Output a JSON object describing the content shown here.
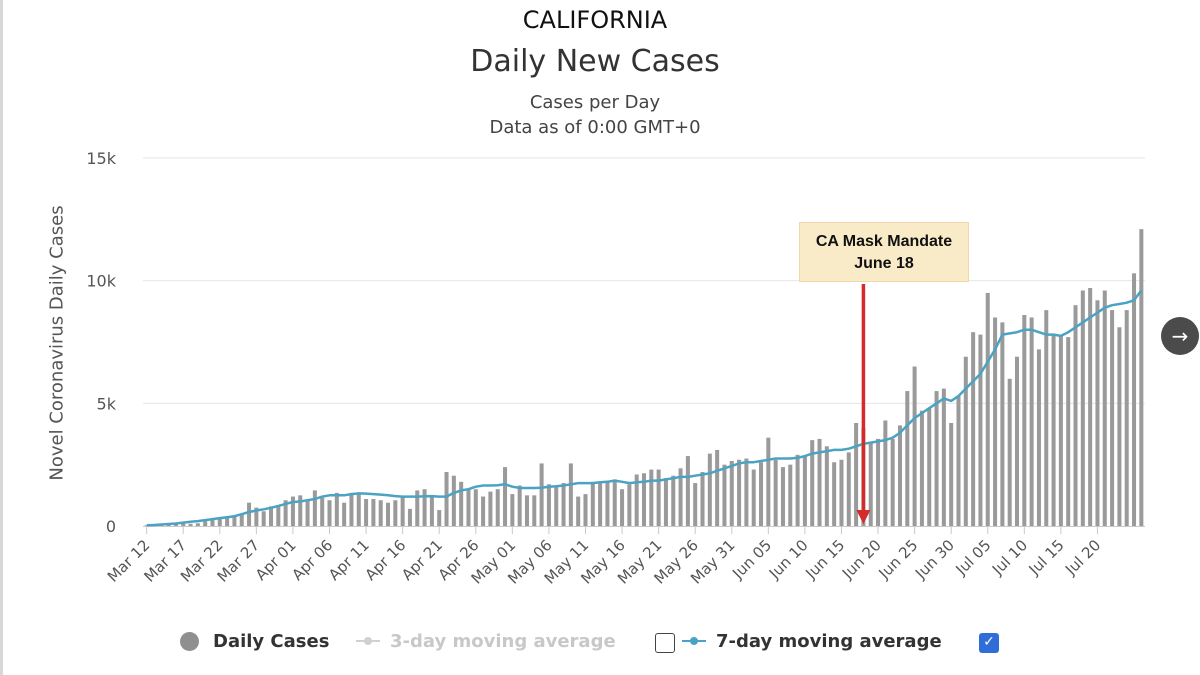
{
  "header": {
    "state": "CALIFORNIA",
    "title": "Daily New Cases",
    "subtitle1": "Cases per Day",
    "subtitle2": "Data as of 0:00 GMT+0"
  },
  "annotation": {
    "line1": "CA Mask Mandate",
    "line2": "June 18",
    "date": "Jun 18",
    "color": "#d62b2b"
  },
  "legend": {
    "daily": "Daily Cases",
    "ma3": "3-day moving average",
    "ma7": "7-day moving average",
    "ma3_checked": false,
    "ma7_checked": true
  },
  "nav": {
    "next_icon": "→"
  },
  "colors": {
    "bars": "#9a9a9a",
    "line": "#4aa3c2",
    "grid": "#e6e6e6",
    "axis_text": "#555555"
  },
  "chart_data": {
    "type": "bar",
    "title": "Daily New Cases",
    "xlabel": "",
    "ylabel": "Novel Coronavirus Daily Cases",
    "ylim": [
      0,
      15000
    ],
    "yticks": [
      0,
      5000,
      10000,
      15000
    ],
    "ytick_labels": [
      "0",
      "5k",
      "10k",
      "15k"
    ],
    "start_date": "Mar 12",
    "xtick_labels": [
      "Mar 12",
      "Mar 17",
      "Mar 22",
      "Mar 27",
      "Apr 01",
      "Apr 06",
      "Apr 11",
      "Apr 16",
      "Apr 21",
      "Apr 26",
      "May 01",
      "May 06",
      "May 11",
      "May 16",
      "May 21",
      "May 26",
      "May 31",
      "Jun 05",
      "Jun 10",
      "Jun 15",
      "Jun 20",
      "Jun 25",
      "Jun 30",
      "Jul 05",
      "Jul 10",
      "Jul 15",
      "Jul 20"
    ],
    "series": [
      {
        "name": "Daily Cases",
        "kind": "bar",
        "values": [
          30,
          40,
          60,
          80,
          100,
          120,
          90,
          110,
          200,
          250,
          350,
          380,
          400,
          450,
          950,
          750,
          600,
          800,
          850,
          1050,
          1200,
          1250,
          1050,
          1450,
          1150,
          1050,
          1350,
          950,
          1350,
          1300,
          1100,
          1100,
          1050,
          950,
          1050,
          1200,
          700,
          1450,
          1500,
          1200,
          650,
          2200,
          2050,
          1800,
          1500,
          1500,
          1200,
          1400,
          1500,
          2400,
          1300,
          1650,
          1250,
          1250,
          2550,
          1700,
          1650,
          1750,
          2550,
          1200,
          1300,
          1800,
          1800,
          1850,
          1900,
          1500,
          1700,
          2100,
          2150,
          2300,
          2300,
          1950,
          2050,
          2350,
          2850,
          1750,
          2200,
          2950,
          3100,
          2500,
          2650,
          2700,
          2750,
          2300,
          2600,
          3600,
          2700,
          2400,
          2500,
          2900,
          2850,
          3500,
          3550,
          3250,
          2600,
          2700,
          3000,
          4200,
          4000,
          3400,
          3550,
          4300,
          3550,
          4100,
          5500,
          6500,
          4700,
          4800,
          5500,
          5600,
          4200,
          5300,
          6900,
          7900,
          7800,
          9500,
          8500,
          8300,
          6000,
          6900,
          8600,
          8500,
          7200,
          8800,
          7800,
          7800,
          7700,
          9000,
          9600,
          9700,
          9200,
          9600,
          8800,
          8100,
          8800,
          10300,
          12100
        ],
        "color": "#9a9a9a"
      },
      {
        "name": "7-day moving average",
        "kind": "line",
        "values": [
          30,
          40,
          60,
          80,
          100,
          140,
          170,
          200,
          240,
          280,
          320,
          360,
          400,
          480,
          570,
          630,
          680,
          740,
          820,
          900,
          980,
          1000,
          1050,
          1100,
          1200,
          1250,
          1250,
          1250,
          1300,
          1330,
          1320,
          1300,
          1280,
          1250,
          1220,
          1200,
          1200,
          1200,
          1210,
          1220,
          1200,
          1200,
          1350,
          1450,
          1500,
          1600,
          1650,
          1650,
          1660,
          1700,
          1600,
          1550,
          1550,
          1550,
          1560,
          1600,
          1620,
          1650,
          1700,
          1750,
          1750,
          1750,
          1780,
          1800,
          1850,
          1800,
          1750,
          1780,
          1800,
          1850,
          1850,
          1900,
          1950,
          2000,
          2000,
          2050,
          2100,
          2150,
          2250,
          2350,
          2450,
          2550,
          2600,
          2600,
          2650,
          2700,
          2750,
          2750,
          2750,
          2780,
          2850,
          2950,
          3000,
          3050,
          3100,
          3100,
          3150,
          3250,
          3350,
          3400,
          3450,
          3500,
          3600,
          3800,
          4100,
          4400,
          4600,
          4800,
          5000,
          5200,
          5100,
          5300,
          5600,
          5900,
          6200,
          6700,
          7200,
          7800,
          7850,
          7900,
          8000,
          8000,
          7900,
          7800,
          7800,
          7750,
          7900,
          8100,
          8300,
          8500,
          8700,
          8900,
          9000,
          9050,
          9100,
          9200,
          9600
        ],
        "color": "#4aa3c2"
      }
    ]
  }
}
